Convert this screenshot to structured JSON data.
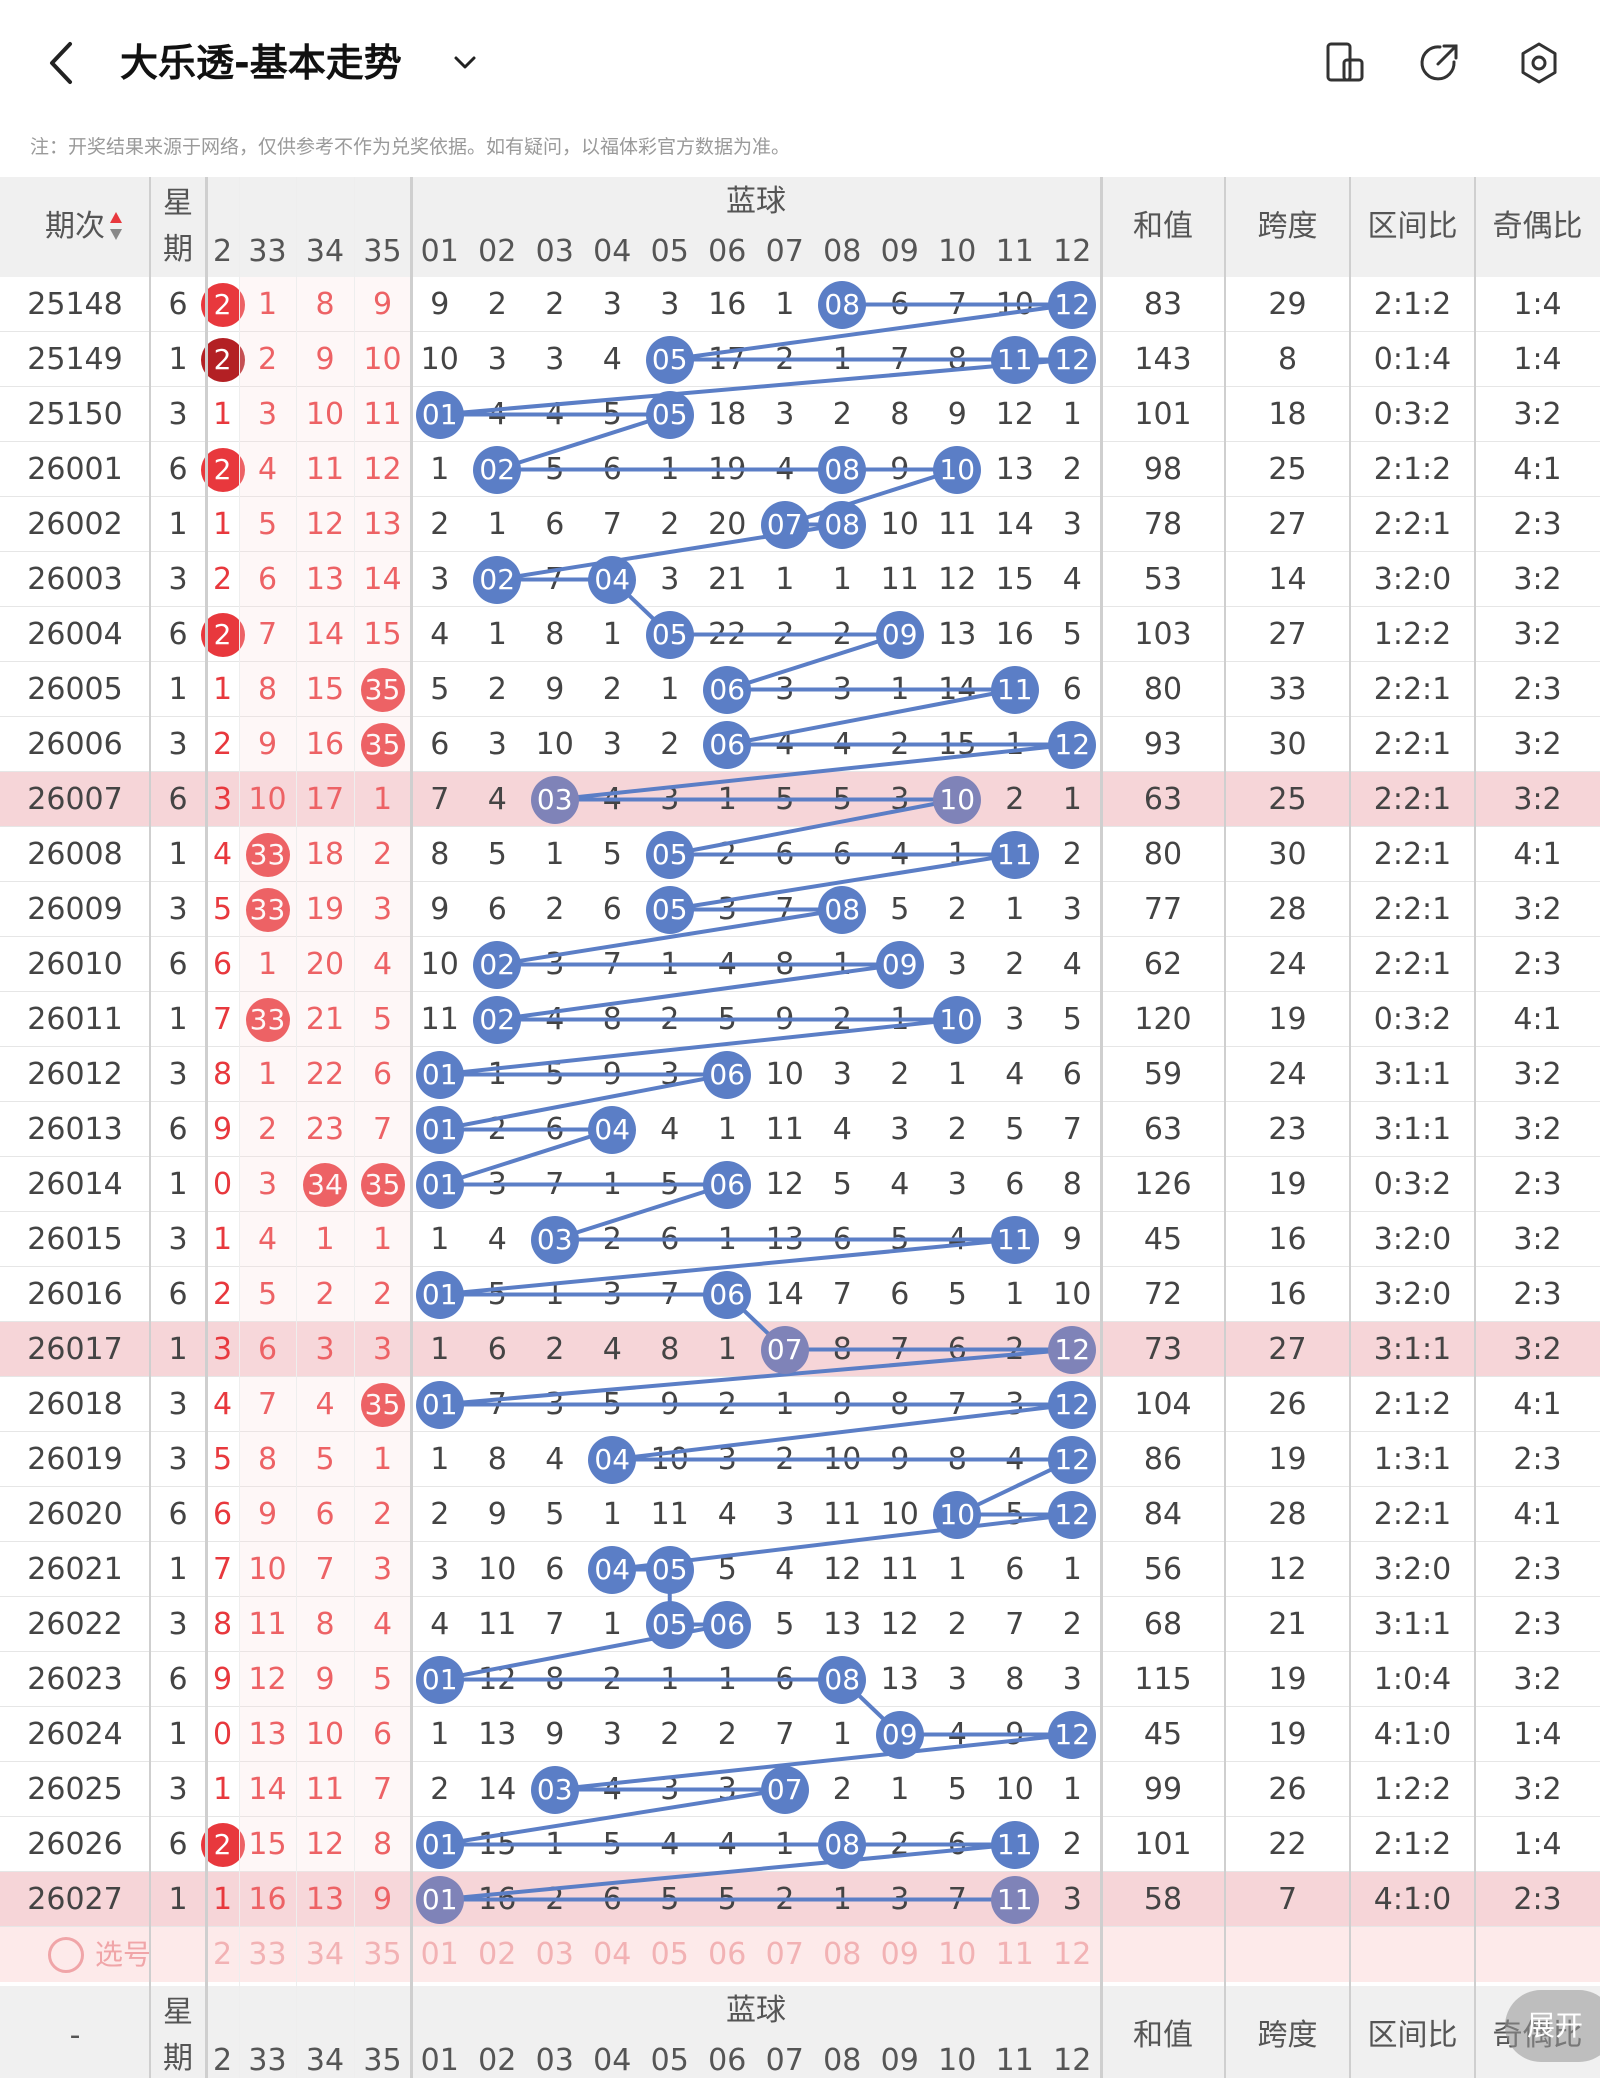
{
  "header": {
    "title": "大乐透-基本走势",
    "back_icon": "back-arrow-icon",
    "dropdown_icon": "chevron-down-icon",
    "right_icons": [
      "phone-rotate-icon",
      "share-icon",
      "settings-icon"
    ]
  },
  "note": "注：开奖结果来源于网络，仅供参考不作为兑奖依据。如有疑问，以福体彩官方数据为准。",
  "table": {
    "col_period": "期次",
    "col_weekday": "星期",
    "col_blue_group": "蓝球",
    "col_sum": "和值",
    "col_span": "跨度",
    "col_zone": "区间比",
    "col_oddeven": "奇偶比",
    "front_partial_cols": [
      "2",
      "33",
      "34",
      "35"
    ],
    "blue_cols": [
      "01",
      "02",
      "03",
      "04",
      "05",
      "06",
      "07",
      "08",
      "09",
      "10",
      "11",
      "12"
    ],
    "rows": [
      {
        "p": "25148",
        "w": "6",
        "f": [
          "2",
          "1",
          "8",
          "9"
        ],
        "b": [
          "9",
          "2",
          "2",
          "3",
          "3",
          "16",
          "1",
          "08",
          "6",
          "7",
          "10",
          "12"
        ],
        "s": "83",
        "k": "29",
        "z": "2:1:2",
        "o": "1:4"
      },
      {
        "p": "25149",
        "w": "1",
        "f": [
          "2",
          "2",
          "9",
          "10"
        ],
        "b": [
          "10",
          "3",
          "3",
          "4",
          "05",
          "17",
          "2",
          "1",
          "7",
          "8",
          "11",
          "12"
        ],
        "s": "143",
        "k": "8",
        "z": "0:1:4",
        "o": "1:4"
      },
      {
        "p": "25150",
        "w": "3",
        "f": [
          "1",
          "3",
          "10",
          "11"
        ],
        "b": [
          "01",
          "4",
          "4",
          "5",
          "05",
          "18",
          "3",
          "2",
          "8",
          "9",
          "12",
          "1"
        ],
        "s": "101",
        "k": "18",
        "z": "0:3:2",
        "o": "3:2"
      },
      {
        "p": "26001",
        "w": "6",
        "f": [
          "2",
          "4",
          "11",
          "12"
        ],
        "b": [
          "1",
          "02",
          "5",
          "6",
          "1",
          "19",
          "4",
          "08",
          "9",
          "10",
          "13",
          "2"
        ],
        "s": "98",
        "k": "25",
        "z": "2:1:2",
        "o": "4:1"
      },
      {
        "p": "26002",
        "w": "1",
        "f": [
          "1",
          "5",
          "12",
          "13"
        ],
        "b": [
          "2",
          "1",
          "6",
          "7",
          "2",
          "20",
          "07",
          "08",
          "10",
          "11",
          "14",
          "3"
        ],
        "s": "78",
        "k": "27",
        "z": "2:2:1",
        "o": "2:3"
      },
      {
        "p": "26003",
        "w": "3",
        "f": [
          "2",
          "6",
          "13",
          "14"
        ],
        "b": [
          "3",
          "02",
          "7",
          "04",
          "3",
          "21",
          "1",
          "1",
          "11",
          "12",
          "15",
          "4"
        ],
        "s": "53",
        "k": "14",
        "z": "3:2:0",
        "o": "3:2"
      },
      {
        "p": "26004",
        "w": "6",
        "f": [
          "2",
          "7",
          "14",
          "15"
        ],
        "b": [
          "4",
          "1",
          "8",
          "1",
          "05",
          "22",
          "2",
          "2",
          "09",
          "13",
          "16",
          "5"
        ],
        "s": "103",
        "k": "27",
        "z": "1:2:2",
        "o": "3:2"
      },
      {
        "p": "26005",
        "w": "1",
        "f": [
          "1",
          "8",
          "15",
          "35"
        ],
        "b": [
          "5",
          "2",
          "9",
          "2",
          "1",
          "06",
          "3",
          "3",
          "1",
          "14",
          "11",
          "6"
        ],
        "s": "80",
        "k": "33",
        "z": "2:2:1",
        "o": "2:3"
      },
      {
        "p": "26006",
        "w": "3",
        "f": [
          "2",
          "9",
          "16",
          "35"
        ],
        "b": [
          "6",
          "3",
          "10",
          "3",
          "2",
          "06",
          "4",
          "4",
          "2",
          "15",
          "1",
          "12"
        ],
        "s": "93",
        "k": "30",
        "z": "2:2:1",
        "o": "3:2"
      },
      {
        "p": "26007",
        "w": "6",
        "f": [
          "3",
          "10",
          "17",
          "1"
        ],
        "b": [
          "7",
          "4",
          "03",
          "4",
          "3",
          "1",
          "5",
          "5",
          "3",
          "10",
          "2",
          "1"
        ],
        "s": "63",
        "k": "25",
        "z": "2:2:1",
        "o": "3:2"
      },
      {
        "p": "26008",
        "w": "1",
        "f": [
          "4",
          "33",
          "18",
          "2"
        ],
        "b": [
          "8",
          "5",
          "1",
          "5",
          "05",
          "2",
          "6",
          "6",
          "4",
          "1",
          "11",
          "2"
        ],
        "s": "80",
        "k": "30",
        "z": "2:2:1",
        "o": "4:1"
      },
      {
        "p": "26009",
        "w": "3",
        "f": [
          "5",
          "33",
          "19",
          "3"
        ],
        "b": [
          "9",
          "6",
          "2",
          "6",
          "05",
          "3",
          "7",
          "08",
          "5",
          "2",
          "1",
          "3"
        ],
        "s": "77",
        "k": "28",
        "z": "2:2:1",
        "o": "3:2"
      },
      {
        "p": "26010",
        "w": "6",
        "f": [
          "6",
          "1",
          "20",
          "4"
        ],
        "b": [
          "10",
          "02",
          "3",
          "7",
          "1",
          "4",
          "8",
          "1",
          "09",
          "3",
          "2",
          "4"
        ],
        "s": "62",
        "k": "24",
        "z": "2:2:1",
        "o": "2:3"
      },
      {
        "p": "26011",
        "w": "1",
        "f": [
          "7",
          "33",
          "21",
          "5"
        ],
        "b": [
          "11",
          "02",
          "4",
          "8",
          "2",
          "5",
          "9",
          "2",
          "1",
          "10",
          "3",
          "5"
        ],
        "s": "120",
        "k": "19",
        "z": "0:3:2",
        "o": "4:1"
      },
      {
        "p": "26012",
        "w": "3",
        "f": [
          "8",
          "1",
          "22",
          "6"
        ],
        "b": [
          "01",
          "1",
          "5",
          "9",
          "3",
          "06",
          "10",
          "3",
          "2",
          "1",
          "4",
          "6"
        ],
        "s": "59",
        "k": "24",
        "z": "3:1:1",
        "o": "3:2"
      },
      {
        "p": "26013",
        "w": "6",
        "f": [
          "9",
          "2",
          "23",
          "7"
        ],
        "b": [
          "01",
          "2",
          "6",
          "04",
          "4",
          "1",
          "11",
          "4",
          "3",
          "2",
          "5",
          "7"
        ],
        "s": "63",
        "k": "23",
        "z": "3:1:1",
        "o": "3:2"
      },
      {
        "p": "26014",
        "w": "1",
        "f": [
          "0",
          "3",
          "34",
          "35"
        ],
        "b": [
          "01",
          "3",
          "7",
          "1",
          "5",
          "06",
          "12",
          "5",
          "4",
          "3",
          "6",
          "8"
        ],
        "s": "126",
        "k": "19",
        "z": "0:3:2",
        "o": "2:3"
      },
      {
        "p": "26015",
        "w": "3",
        "f": [
          "1",
          "4",
          "1",
          "1"
        ],
        "b": [
          "1",
          "4",
          "03",
          "2",
          "6",
          "1",
          "13",
          "6",
          "5",
          "4",
          "11",
          "9"
        ],
        "s": "45",
        "k": "16",
        "z": "3:2:0",
        "o": "3:2"
      },
      {
        "p": "26016",
        "w": "6",
        "f": [
          "2",
          "5",
          "2",
          "2"
        ],
        "b": [
          "01",
          "5",
          "1",
          "3",
          "7",
          "06",
          "14",
          "7",
          "6",
          "5",
          "1",
          "10"
        ],
        "s": "72",
        "k": "16",
        "z": "3:2:0",
        "o": "2:3"
      },
      {
        "p": "26017",
        "w": "1",
        "f": [
          "3",
          "6",
          "3",
          "3"
        ],
        "b": [
          "1",
          "6",
          "2",
          "4",
          "8",
          "1",
          "07",
          "8",
          "7",
          "6",
          "2",
          "12"
        ],
        "s": "73",
        "k": "27",
        "z": "3:1:1",
        "o": "3:2"
      },
      {
        "p": "26018",
        "w": "3",
        "f": [
          "4",
          "7",
          "4",
          "35"
        ],
        "b": [
          "01",
          "7",
          "3",
          "5",
          "9",
          "2",
          "1",
          "9",
          "8",
          "7",
          "3",
          "12"
        ],
        "s": "104",
        "k": "26",
        "z": "2:1:2",
        "o": "4:1"
      },
      {
        "p": "26019",
        "w": "3",
        "f": [
          "5",
          "8",
          "5",
          "1"
        ],
        "b": [
          "1",
          "8",
          "4",
          "04",
          "10",
          "3",
          "2",
          "10",
          "9",
          "8",
          "4",
          "12"
        ],
        "s": "86",
        "k": "19",
        "z": "1:3:1",
        "o": "2:3"
      },
      {
        "p": "26020",
        "w": "6",
        "f": [
          "6",
          "9",
          "6",
          "2"
        ],
        "b": [
          "2",
          "9",
          "5",
          "1",
          "11",
          "4",
          "3",
          "11",
          "10",
          "10",
          "5",
          "12"
        ],
        "s": "84",
        "k": "28",
        "z": "2:2:1",
        "o": "4:1"
      },
      {
        "p": "26021",
        "w": "1",
        "f": [
          "7",
          "10",
          "7",
          "3"
        ],
        "b": [
          "3",
          "10",
          "6",
          "04",
          "05",
          "5",
          "4",
          "12",
          "11",
          "1",
          "6",
          "1"
        ],
        "s": "56",
        "k": "12",
        "z": "3:2:0",
        "o": "2:3"
      },
      {
        "p": "26022",
        "w": "3",
        "f": [
          "8",
          "11",
          "8",
          "4"
        ],
        "b": [
          "4",
          "11",
          "7",
          "1",
          "05",
          "06",
          "5",
          "13",
          "12",
          "2",
          "7",
          "2"
        ],
        "s": "68",
        "k": "21",
        "z": "3:1:1",
        "o": "2:3"
      },
      {
        "p": "26023",
        "w": "6",
        "f": [
          "9",
          "12",
          "9",
          "5"
        ],
        "b": [
          "01",
          "12",
          "8",
          "2",
          "1",
          "1",
          "6",
          "08",
          "13",
          "3",
          "8",
          "3"
        ],
        "s": "115",
        "k": "19",
        "z": "1:0:4",
        "o": "3:2"
      },
      {
        "p": "26024",
        "w": "1",
        "f": [
          "0",
          "13",
          "10",
          "6"
        ],
        "b": [
          "1",
          "13",
          "9",
          "3",
          "2",
          "2",
          "7",
          "1",
          "09",
          "4",
          "9",
          "12"
        ],
        "s": "45",
        "k": "19",
        "z": "4:1:0",
        "o": "1:4"
      },
      {
        "p": "26025",
        "w": "3",
        "f": [
          "1",
          "14",
          "11",
          "7"
        ],
        "b": [
          "2",
          "14",
          "03",
          "4",
          "3",
          "3",
          "07",
          "2",
          "1",
          "5",
          "10",
          "1"
        ],
        "s": "99",
        "k": "26",
        "z": "1:2:2",
        "o": "3:2"
      },
      {
        "p": "26026",
        "w": "6",
        "f": [
          "2",
          "15",
          "12",
          "8"
        ],
        "b": [
          "01",
          "15",
          "1",
          "5",
          "4",
          "4",
          "1",
          "08",
          "2",
          "6",
          "11",
          "2"
        ],
        "s": "101",
        "k": "22",
        "z": "2:1:2",
        "o": "1:4"
      },
      {
        "p": "26027",
        "w": "1",
        "f": [
          "1",
          "16",
          "13",
          "9"
        ],
        "b": [
          "01",
          "16",
          "2",
          "6",
          "5",
          "5",
          "2",
          "1",
          "3",
          "7",
          "11",
          "3"
        ],
        "s": "58",
        "k": "7",
        "z": "4:1:0",
        "o": "2:3"
      }
    ],
    "highlight_rows": [
      "26007",
      "26017",
      "26027"
    ],
    "pick_label": "选号",
    "footer_period": "-"
  },
  "fab_label": "展开",
  "colors": {
    "blue_ball": "#5b7ec6",
    "purple_ball": "#7f83b8",
    "red_ball": "#e8383d",
    "dark_red_ball": "#b32024",
    "red_text": "#e8383d",
    "highlight_row": "#f6d5d8",
    "header_bg": "#f0f0f0",
    "pick_row": "#fdeaea"
  }
}
